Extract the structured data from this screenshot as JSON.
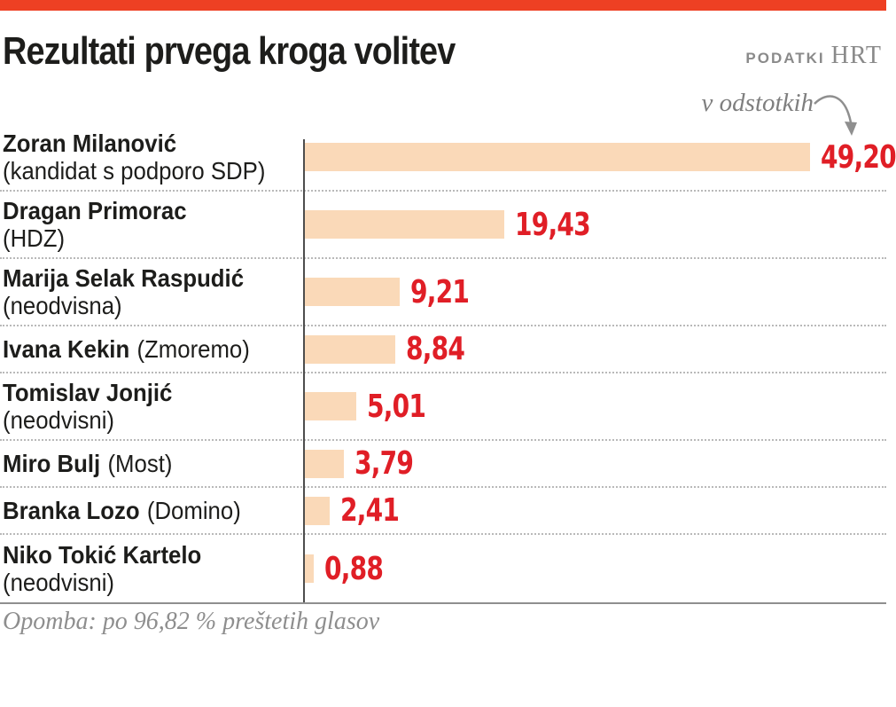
{
  "colors": {
    "accent": "#ee4023",
    "bar_fill": "#fad9b8",
    "value_red": "#e01e26"
  },
  "header": {
    "title": "Rezultati prvega kroga volitev",
    "source_label": "PODATKI",
    "source_name": "HRT"
  },
  "chart_data": {
    "type": "bar",
    "orientation": "horizontal",
    "title": "Rezultati prvega kroga volitev",
    "unit_label": "v odstotkih",
    "unit": "%",
    "xlim": [
      0,
      49.2
    ],
    "grid": "dotted row separators",
    "legend": "none",
    "categories": [
      "Zoran Milanović (kandidat s podporo SDP)",
      "Dragan Primorac (HDZ)",
      "Marija Selak Raspudić (neodvisna)",
      "Ivana Kekin (Zmoremo)",
      "Tomislav Jonjić (neodvisni)",
      "Miro Bulj (Most)",
      "Branka Lozo (Domino)",
      "Niko Tokić Kartelo (neodvisni)"
    ],
    "values": [
      49.2,
      19.43,
      9.21,
      8.84,
      5.01,
      3.79,
      2.41,
      0.88
    ],
    "rows": [
      {
        "name": "Zoran Milanović",
        "party": "(kandidat s podporo SDP)",
        "party_inline": false,
        "value": 49.2,
        "value_label": "49,20"
      },
      {
        "name": "Dragan Primorac",
        "party": "(HDZ)",
        "party_inline": false,
        "value": 19.43,
        "value_label": "19,43"
      },
      {
        "name": "Marija Selak Raspudić",
        "party": "(neodvisna)",
        "party_inline": false,
        "value": 9.21,
        "value_label": "9,21"
      },
      {
        "name": "Ivana Kekin",
        "party": "(Zmoremo)",
        "party_inline": true,
        "value": 8.84,
        "value_label": "8,84"
      },
      {
        "name": "Tomislav Jonjić",
        "party": "(neodvisni)",
        "party_inline": false,
        "value": 5.01,
        "value_label": "5,01"
      },
      {
        "name": "Miro Bulj",
        "party": "(Most)",
        "party_inline": true,
        "value": 3.79,
        "value_label": "3,79"
      },
      {
        "name": "Branka Lozo",
        "party": "(Domino)",
        "party_inline": true,
        "value": 2.41,
        "value_label": "2,41"
      },
      {
        "name": "Niko Tokić Kartelo",
        "party": "(neodvisni)",
        "party_inline": false,
        "value": 0.88,
        "value_label": "0,88"
      }
    ]
  },
  "footnote": {
    "text": "Opomba: po 96,82 % preštetih glasov"
  }
}
